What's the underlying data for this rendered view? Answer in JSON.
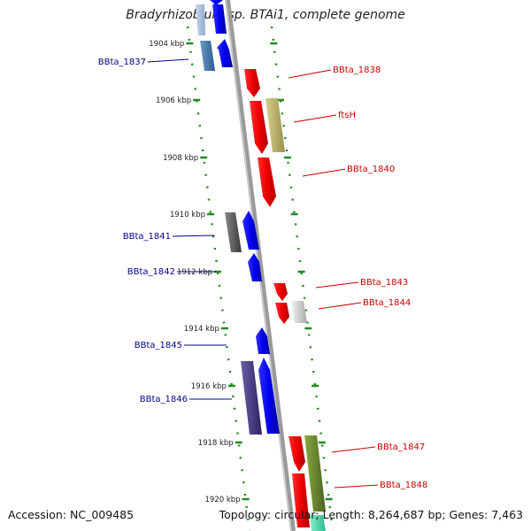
{
  "title": "Bradyrhizobium sp. BTAi1, complete genome",
  "footer": {
    "accession": "Accession: NC_009485",
    "topology": "Topology: circular; Length: 8,264,687 bp; Genes: 7,463"
  },
  "ticks": [
    "1904 kbp",
    "1906 kbp",
    "1908 kbp",
    "1910 kbp",
    "1912 kbp",
    "1914 kbp",
    "1916 kbp",
    "1918 kbp",
    "1920 kbp"
  ],
  "genes_left": [
    {
      "name": "BBta_1837",
      "color": "#00008b"
    },
    {
      "name": "BBta_1841",
      "color": "#00008b"
    },
    {
      "name": "BBta_1842",
      "color": "#00008b"
    },
    {
      "name": "BBta_1845",
      "color": "#00008b"
    },
    {
      "name": "BBta_1846",
      "color": "#00008b"
    }
  ],
  "genes_right": [
    {
      "name": "BBta_1838",
      "color": "#cc0000"
    },
    {
      "name": "ftsH",
      "color": "#cc0000"
    },
    {
      "name": "BBta_1840",
      "color": "#cc0000"
    },
    {
      "name": "BBta_1843",
      "color": "#cc0000"
    },
    {
      "name": "BBta_1844",
      "color": "#cc0000"
    },
    {
      "name": "BBta_1847",
      "color": "#cc0000"
    },
    {
      "name": "BBta_1848",
      "color": "#cc0000"
    }
  ]
}
